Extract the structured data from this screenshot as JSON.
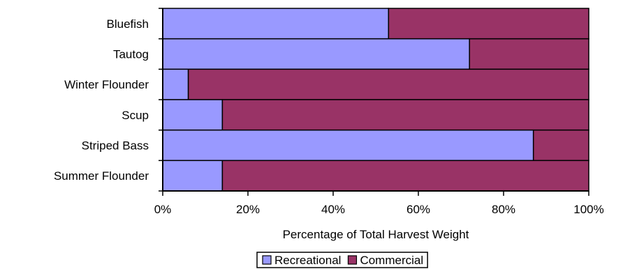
{
  "chart_data": {
    "type": "bar",
    "orientation": "horizontal",
    "stacked": "percent",
    "categories": [
      "Bluefish",
      "Tautog",
      "Winter Flounder",
      "Scup",
      "Striped Bass",
      "Summer Flounder"
    ],
    "series": [
      {
        "name": "Recreational",
        "color": "#9999ff",
        "values": [
          53,
          72,
          6,
          14,
          87,
          14
        ]
      },
      {
        "name": "Commercial",
        "color": "#993366",
        "values": [
          47,
          28,
          94,
          86,
          13,
          86
        ]
      }
    ],
    "xlabel": "Percentage of Total Harvest Weight",
    "ylabel": "",
    "xlim": [
      0,
      100
    ],
    "xticks": [
      "0%",
      "20%",
      "40%",
      "60%",
      "80%",
      "100%"
    ],
    "grid": false,
    "legend_position": "bottom"
  }
}
